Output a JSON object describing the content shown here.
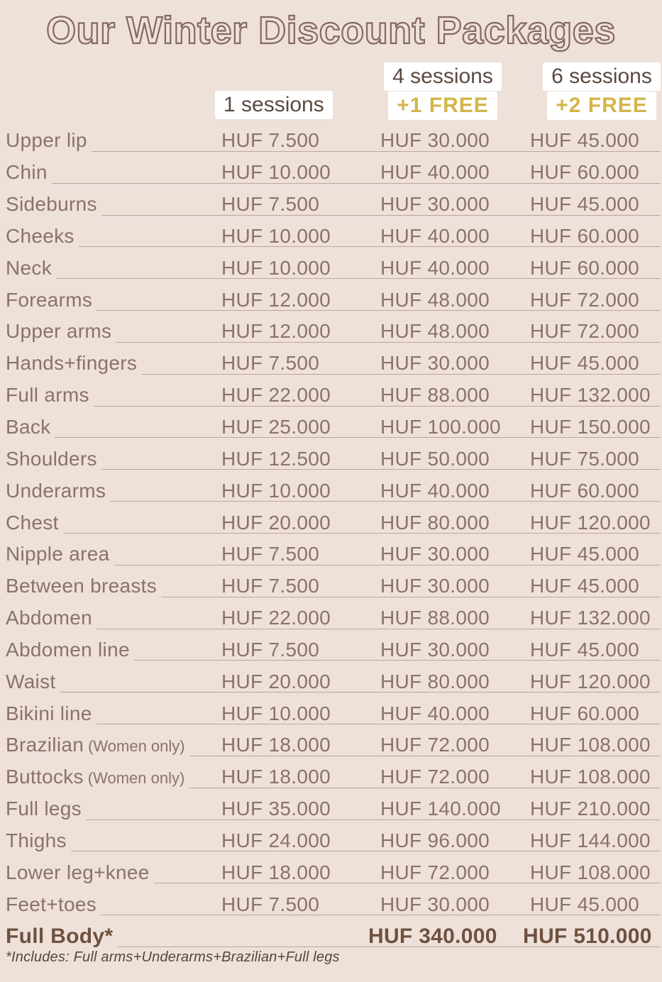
{
  "page": {
    "title": "Our Winter Discount Packages",
    "background_color": "#eee1da",
    "title_outline_color": "#84695c",
    "body_text_color": "#8b7365",
    "header_text_color": "#5b4a42",
    "accent_gold_color": "#d3b54b",
    "bold_row_color": "#6e523f",
    "currency": "HUF"
  },
  "columns": {
    "col1": {
      "label": "1 sessions"
    },
    "col2": {
      "label": "4 sessions",
      "sub": "+1 FREE"
    },
    "col3": {
      "label": "6 sessions",
      "sub": "+2 FREE"
    }
  },
  "table": {
    "rows": [
      {
        "label": "Upper lip",
        "p1": "HUF 7.500",
        "p4": "HUF 30.000",
        "p6": "HUF 45.000"
      },
      {
        "label": "Chin",
        "p1": "HUF 10.000",
        "p4": "HUF 40.000",
        "p6": "HUF 60.000"
      },
      {
        "label": "Sideburns",
        "p1": "HUF 7.500",
        "p4": "HUF 30.000",
        "p6": "HUF 45.000"
      },
      {
        "label": "Cheeks",
        "p1": "HUF 10.000",
        "p4": "HUF 40.000",
        "p6": "HUF 60.000"
      },
      {
        "label": "Neck",
        "p1": "HUF 10.000",
        "p4": "HUF 40.000",
        "p6": "HUF 60.000"
      },
      {
        "label": "Forearms",
        "p1": "HUF 12.000",
        "p4": "HUF 48.000",
        "p6": "HUF 72.000"
      },
      {
        "label": "Upper arms",
        "p1": "HUF 12.000",
        "p4": "HUF 48.000",
        "p6": "HUF 72.000"
      },
      {
        "label": "Hands+fingers",
        "p1": "HUF 7.500",
        "p4": "HUF 30.000",
        "p6": "HUF 45.000"
      },
      {
        "label": "Full arms",
        "p1": "HUF 22.000",
        "p4": "HUF 88.000",
        "p6": "HUF 132.000"
      },
      {
        "label": "Back",
        "p1": "HUF 25.000",
        "p4": "HUF 100.000",
        "p6": "HUF 150.000"
      },
      {
        "label": "Shoulders",
        "p1": "HUF 12.500",
        "p4": "HUF 50.000",
        "p6": "HUF 75.000"
      },
      {
        "label": "Underarms",
        "p1": "HUF 10.000",
        "p4": "HUF 40.000",
        "p6": "HUF 60.000"
      },
      {
        "label": "Chest",
        "p1": "HUF 20.000",
        "p4": "HUF 80.000",
        "p6": "HUF 120.000"
      },
      {
        "label": "Nipple area",
        "p1": "HUF 7.500",
        "p4": "HUF 30.000",
        "p6": "HUF 45.000"
      },
      {
        "label": "Between breasts",
        "p1": "HUF 7.500",
        "p4": "HUF 30.000",
        "p6": "HUF 45.000"
      },
      {
        "label": "Abdomen",
        "p1": "HUF 22.000",
        "p4": "HUF 88.000",
        "p6": "HUF 132.000"
      },
      {
        "label": "Abdomen line",
        "p1": "HUF 7.500",
        "p4": "HUF 30.000",
        "p6": "HUF 45.000"
      },
      {
        "label": "Waist",
        "p1": "HUF 20.000",
        "p4": "HUF 80.000",
        "p6": "HUF 120.000"
      },
      {
        "label": "Bikini line",
        "p1": "HUF 10.000",
        "p4": "HUF 40.000",
        "p6": "HUF 60.000"
      },
      {
        "label": "Brazilian",
        "note": "(Women only)",
        "p1": "HUF 18.000",
        "p4": "HUF 72.000",
        "p6": "HUF 108.000"
      },
      {
        "label": "Buttocks",
        "note": "(Women only)",
        "p1": "HUF 18.000",
        "p4": "HUF 72.000",
        "p6": "HUF 108.000"
      },
      {
        "label": "Full legs",
        "p1": "HUF 35.000",
        "p4": "HUF 140.000",
        "p6": "HUF 210.000"
      },
      {
        "label": "Thighs",
        "p1": "HUF 24.000",
        "p4": "HUF 96.000",
        "p6": "HUF 144.000"
      },
      {
        "label": "Lower leg+knee",
        "p1": "HUF 18.000",
        "p4": "HUF 72.000",
        "p6": "HUF 108.000"
      },
      {
        "label": "Feet+toes",
        "p1": "HUF 7.500",
        "p4": "HUF 30.000",
        "p6": "HUF 45.000"
      },
      {
        "label": "Full Body*",
        "bold": true,
        "p4": "HUF 340.000",
        "p6": "HUF 510.000"
      }
    ]
  },
  "footnote": "*Includes: Full arms+Underarms+Brazilian+Full legs"
}
